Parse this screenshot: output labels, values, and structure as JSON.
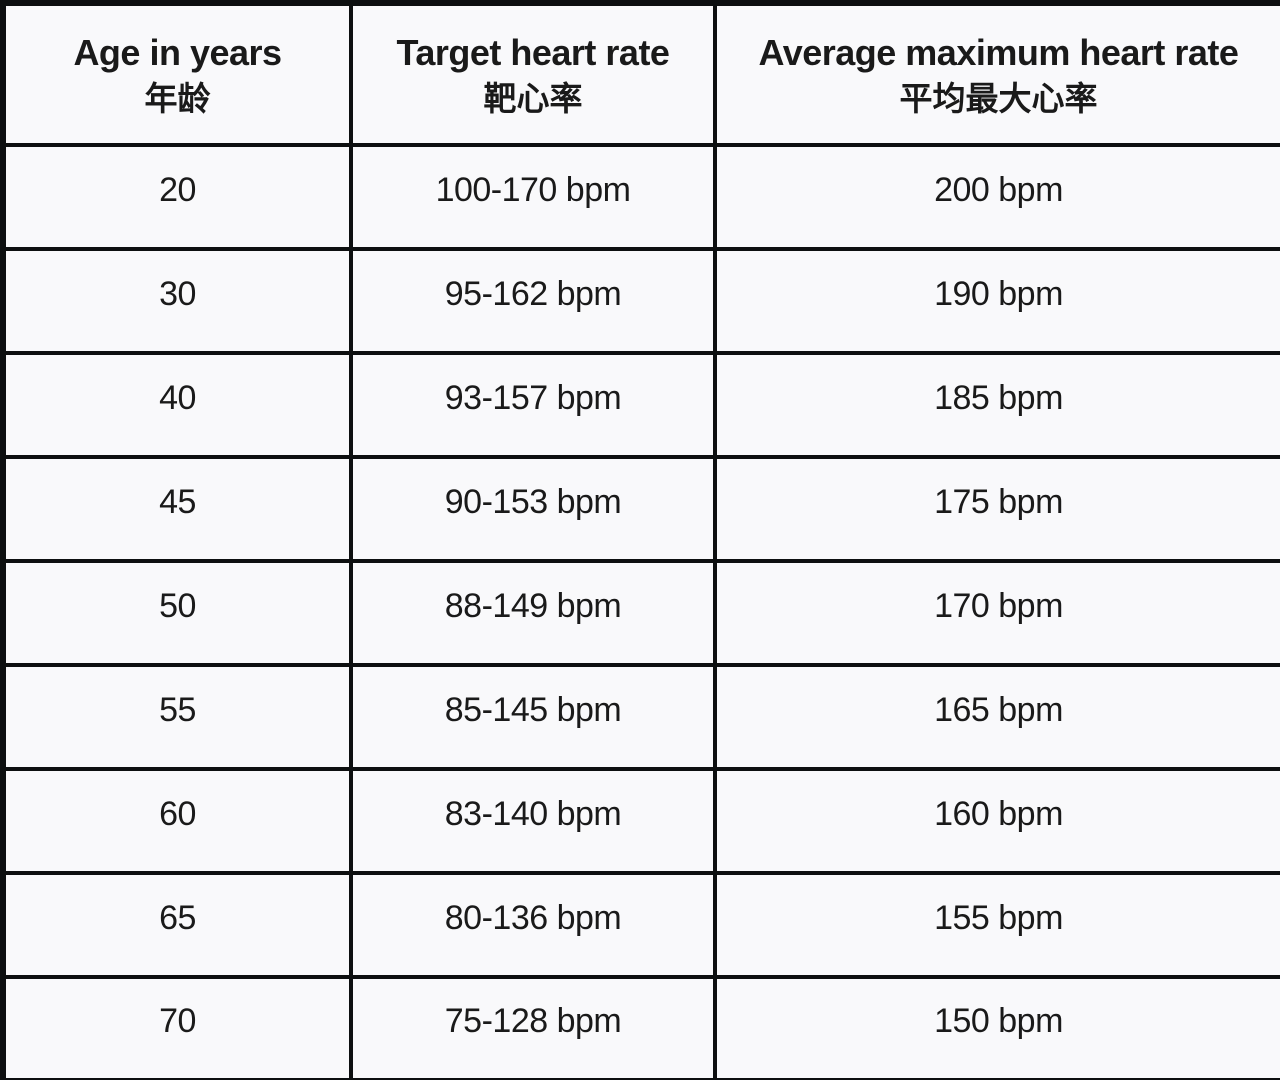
{
  "table": {
    "headers": [
      {
        "en": "Age in years",
        "zh": "年龄"
      },
      {
        "en": "Target heart rate",
        "zh": "靶心率"
      },
      {
        "en": "Average maximum heart rate",
        "zh": "平均最大心率"
      }
    ]
  },
  "chart_data": {
    "type": "table",
    "columns": [
      "Age in years 年龄",
      "Target heart rate 靶心率",
      "Average maximum heart rate 平均最大心率"
    ],
    "rows": [
      [
        "20",
        "100-170 bpm",
        "200 bpm"
      ],
      [
        "30",
        "95-162 bpm",
        "190 bpm"
      ],
      [
        "40",
        "93-157 bpm",
        "185 bpm"
      ],
      [
        "45",
        "90-153 bpm",
        "175 bpm"
      ],
      [
        "50",
        "88-149 bpm",
        "170 bpm"
      ],
      [
        "55",
        "85-145 bpm",
        "165 bpm"
      ],
      [
        "60",
        "83-140 bpm",
        "160 bpm"
      ],
      [
        "65",
        "80-136 bpm",
        "155 bpm"
      ],
      [
        "70",
        "75-128 bpm",
        "150 bpm"
      ]
    ]
  },
  "colors": {
    "border": "#0d0f10",
    "cell_background": "#f9f9fb",
    "text": "#1a1a1a"
  }
}
